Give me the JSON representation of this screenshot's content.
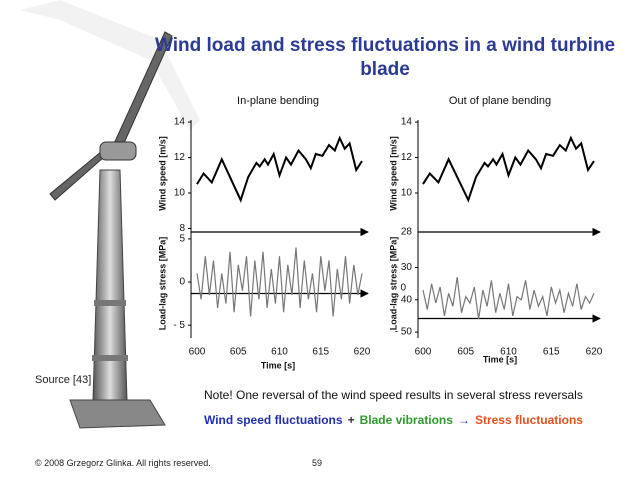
{
  "title": "Wind load and stress fluctuations in a wind turbine blade",
  "chart_data": [
    {
      "type": "line",
      "title": "In-plane bending",
      "xlabel": "Time [s]",
      "ylabel": "Wind speed [m/s]",
      "y2label": "Load-lag stress [MPa]",
      "xlim": [
        600,
        620
      ],
      "xticks": [
        600,
        605,
        610,
        615,
        620
      ],
      "ylim": [
        7.8,
        14.4
      ],
      "yticks": [
        8,
        10,
        12,
        14
      ],
      "y2lim": [
        -7.3,
        5.8
      ],
      "y2ticks": [
        5,
        0,
        {
          "value": -5,
          "label": "- 5"
        }
      ],
      "series": [
        {
          "name": "Wind speed",
          "color": "#000000",
          "axis": "y",
          "x": [
            600,
            600.8,
            601.8,
            603,
            604.5,
            605.3,
            606.2,
            607.2,
            607.6,
            608.2,
            608.6,
            609.3,
            610,
            610.8,
            611.4,
            612.3,
            613.2,
            613.8,
            614.4,
            615.2,
            616,
            616.7,
            617.3,
            617.9,
            618.5,
            619.3,
            620
          ],
          "values": [
            10.5,
            11.1,
            10.6,
            11.9,
            10.4,
            9.6,
            10.9,
            11.7,
            11.5,
            11.9,
            11.6,
            12.2,
            11.0,
            12.0,
            11.6,
            12.4,
            11.9,
            11.4,
            12.2,
            12.1,
            12.7,
            12.4,
            13.1,
            12.5,
            12.8,
            11.3,
            11.8
          ]
        },
        {
          "name": "Load-lag stress",
          "color": "#777777",
          "axis": "y2",
          "x": [
            600,
            600.5,
            601,
            601.5,
            602,
            602.5,
            603,
            603.5,
            604,
            604.5,
            605,
            605.5,
            606,
            606.5,
            607,
            607.5,
            608,
            608.5,
            609,
            609.5,
            610,
            610.5,
            611,
            611.5,
            612,
            612.5,
            613,
            613.5,
            614,
            614.5,
            615,
            615.5,
            616,
            616.5,
            617,
            617.5,
            618,
            618.5,
            619,
            619.5,
            620
          ],
          "values": [
            1,
            -2,
            3,
            -1.5,
            2.5,
            -3,
            1,
            -2.5,
            3.5,
            -3.5,
            2,
            -1,
            3,
            -4,
            2.5,
            -2,
            3.5,
            -3,
            1.5,
            -2.5,
            3,
            -3.5,
            2,
            -1.5,
            4,
            -3,
            2.5,
            -2,
            1,
            -3.5,
            3,
            -1,
            2.5,
            -4,
            1.5,
            -2,
            3,
            -2.5,
            2,
            -1.5,
            1
          ]
        }
      ]
    },
    {
      "type": "line",
      "title": "Out of plane bending",
      "xlabel": "Time [s]",
      "ylabel": "Wind speed [m/s]",
      "y2label": "Load-lag stress [MPa]",
      "xlim": [
        600,
        620
      ],
      "xticks": [
        600,
        605,
        610,
        615,
        620
      ],
      "ylim": [
        7.8,
        14.4
      ],
      "yticks": [
        10,
        12,
        14
      ],
      "y2lim": [
        -54,
        -19
      ],
      "y2ticks": [
        {
          "value": -30,
          "label": "- 30"
        },
        {
          "value": -40,
          "label": "- 40"
        },
        {
          "value": -50,
          "label": "- 50"
        }
      ],
      "annotations": [
        "28",
        "0"
      ],
      "series": [
        {
          "name": "Wind speed",
          "color": "#000000",
          "axis": "y",
          "x": [
            600,
            600.8,
            601.8,
            603,
            604.5,
            605.3,
            606.2,
            607.2,
            607.6,
            608.2,
            608.6,
            609.3,
            610,
            610.8,
            611.4,
            612.3,
            613.2,
            613.8,
            614.4,
            615.2,
            616,
            616.7,
            617.3,
            617.9,
            618.5,
            619.3,
            620
          ],
          "values": [
            10.5,
            11.1,
            10.6,
            11.9,
            10.4,
            9.6,
            10.9,
            11.7,
            11.5,
            11.9,
            11.6,
            12.2,
            11.0,
            12.0,
            11.6,
            12.4,
            11.9,
            11.4,
            12.2,
            12.1,
            12.7,
            12.4,
            13.1,
            12.5,
            12.8,
            11.3,
            11.8
          ]
        },
        {
          "name": "Load-lag stress",
          "color": "#777777",
          "axis": "y2",
          "x": [
            600,
            600.5,
            601,
            601.5,
            602,
            602.5,
            603,
            603.5,
            604,
            604.5,
            605,
            605.5,
            606,
            606.5,
            607,
            607.5,
            608,
            608.5,
            609,
            609.5,
            610,
            610.5,
            611,
            611.5,
            612,
            612.5,
            613,
            613.5,
            614,
            614.5,
            615,
            615.5,
            616,
            616.5,
            617,
            617.5,
            618,
            618.5,
            619,
            619.5,
            620
          ],
          "values": [
            -37,
            -43,
            -35,
            -41,
            -36,
            -45,
            -38,
            -42,
            -33,
            -44,
            -39,
            -41,
            -36,
            -46,
            -37,
            -42,
            -34,
            -44,
            -38,
            -43,
            -35,
            -45,
            -39,
            -40,
            -34,
            -43,
            -37,
            -42,
            -39,
            -45,
            -36,
            -41,
            -37,
            -44,
            -38,
            -42,
            -35,
            -43,
            -39,
            -41,
            -38
          ]
        }
      ]
    }
  ],
  "source": "Source [43]",
  "note": "Note! One reversal of the wind speed results in several stress reversals",
  "summary": [
    {
      "text": "Wind speed fluctuations",
      "color": "#1f2fb0"
    },
    {
      "text": "+",
      "color": "#333333"
    },
    {
      "text": "Blade vibrations",
      "color": "#2e9a2e"
    },
    {
      "text": "→",
      "color": "#1f2fb0"
    },
    {
      "text": "Stress fluctuations",
      "color": "#e8501e"
    }
  ],
  "footer": {
    "copyright": "© 2008 Grzegorz Glinka. All rights reserved.",
    "page": "59"
  }
}
